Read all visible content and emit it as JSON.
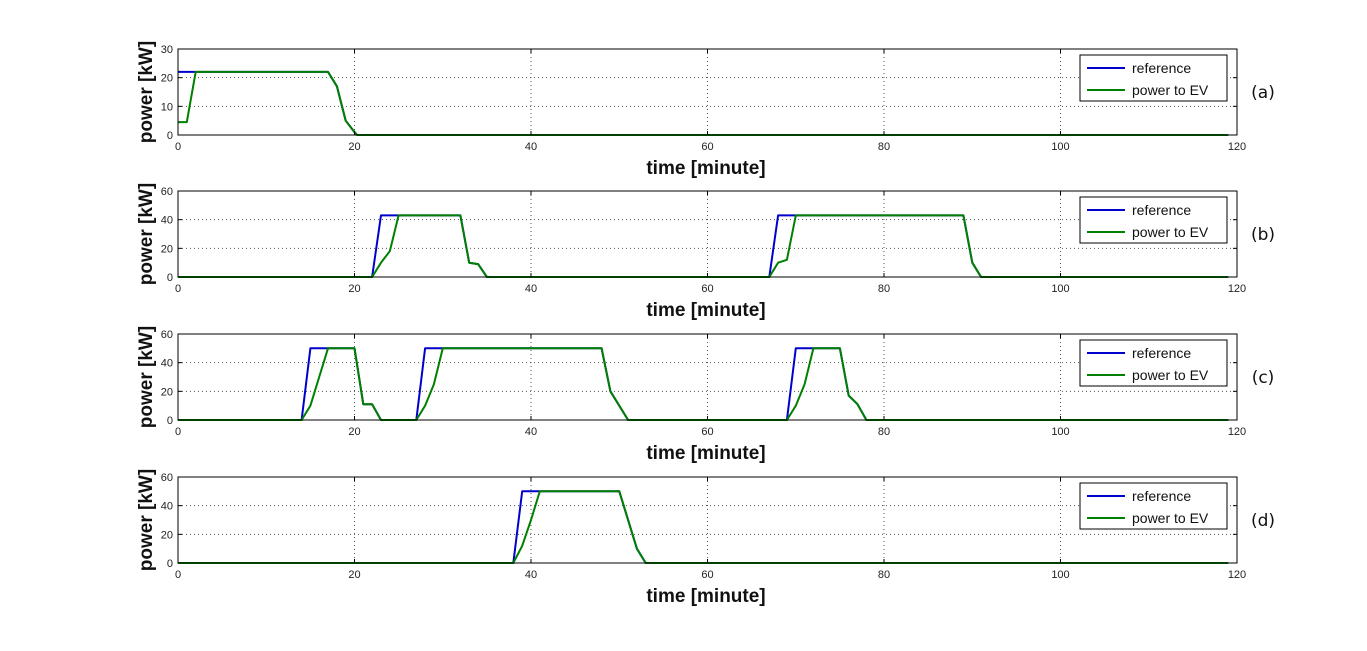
{
  "chart_data": [
    {
      "type": "line",
      "panel_label": "(a)",
      "xlabel": "time [minute]",
      "ylabel": "power [kW]",
      "xlim": [
        0,
        120
      ],
      "ylim": [
        0,
        30
      ],
      "xticks": [
        0,
        20,
        40,
        60,
        80,
        100,
        120
      ],
      "yticks": [
        0,
        10,
        20,
        30
      ],
      "grid": true,
      "legend_position": "top-right",
      "series": [
        {
          "name": "reference",
          "color": "#0000cc",
          "points": [
            [
              0,
              22
            ],
            [
              17,
              22
            ],
            [
              18,
              17
            ],
            [
              19,
              5
            ],
            [
              20,
              1
            ],
            [
              20.3,
              0
            ],
            [
              119,
              0
            ]
          ]
        },
        {
          "name": "power to EV",
          "color": "#008000",
          "points": [
            [
              0,
              4.5
            ],
            [
              1,
              4.5
            ],
            [
              2,
              22
            ],
            [
              17,
              22
            ],
            [
              18,
              17
            ],
            [
              19,
              5
            ],
            [
              20,
              1
            ],
            [
              20.3,
              0
            ],
            [
              119,
              0
            ]
          ]
        }
      ]
    },
    {
      "type": "line",
      "panel_label": "(b)",
      "xlabel": "time [minute]",
      "ylabel": "power [kW]",
      "xlim": [
        0,
        120
      ],
      "ylim": [
        0,
        60
      ],
      "xticks": [
        0,
        20,
        40,
        60,
        80,
        100,
        120
      ],
      "yticks": [
        0,
        20,
        40,
        60
      ],
      "grid": true,
      "legend_position": "top-right",
      "series": [
        {
          "name": "reference",
          "color": "#0000cc",
          "points": [
            [
              0,
              0
            ],
            [
              22,
              0
            ],
            [
              23,
              43
            ],
            [
              32,
              43
            ],
            [
              33,
              10
            ],
            [
              34,
              9
            ],
            [
              35,
              0
            ],
            [
              67,
              0
            ],
            [
              68,
              43
            ],
            [
              89,
              43
            ],
            [
              90,
              10
            ],
            [
              91,
              0
            ],
            [
              119,
              0
            ]
          ]
        },
        {
          "name": "power to EV",
          "color": "#008000",
          "points": [
            [
              0,
              0
            ],
            [
              22,
              0
            ],
            [
              23,
              10
            ],
            [
              24,
              18
            ],
            [
              25,
              43
            ],
            [
              32,
              43
            ],
            [
              33,
              10
            ],
            [
              34,
              9
            ],
            [
              35,
              0
            ],
            [
              67,
              0
            ],
            [
              68,
              10
            ],
            [
              69,
              12
            ],
            [
              70,
              43
            ],
            [
              89,
              43
            ],
            [
              90,
              10
            ],
            [
              91,
              0
            ],
            [
              119,
              0
            ]
          ]
        }
      ]
    },
    {
      "type": "line",
      "panel_label": "(c)",
      "xlabel": "time [minute]",
      "ylabel": "power [kW]",
      "xlim": [
        0,
        120
      ],
      "ylim": [
        0,
        60
      ],
      "xticks": [
        0,
        20,
        40,
        60,
        80,
        100,
        120
      ],
      "yticks": [
        0,
        20,
        40,
        60
      ],
      "grid": true,
      "legend_position": "top-right",
      "series": [
        {
          "name": "reference",
          "color": "#0000cc",
          "points": [
            [
              0,
              0
            ],
            [
              14,
              0
            ],
            [
              15,
              50
            ],
            [
              20,
              50
            ],
            [
              21,
              11
            ],
            [
              22,
              11
            ],
            [
              23,
              0
            ],
            [
              27,
              0
            ],
            [
              28,
              50
            ],
            [
              48,
              50
            ],
            [
              49,
              20
            ],
            [
              51,
              0
            ],
            [
              69,
              0
            ],
            [
              70,
              50
            ],
            [
              75,
              50
            ],
            [
              76,
              17
            ],
            [
              77,
              11
            ],
            [
              78,
              0
            ],
            [
              119,
              0
            ]
          ]
        },
        {
          "name": "power to EV",
          "color": "#008000",
          "points": [
            [
              0,
              0
            ],
            [
              14,
              0
            ],
            [
              15,
              10
            ],
            [
              16,
              30
            ],
            [
              17,
              50
            ],
            [
              20,
              50
            ],
            [
              21,
              11
            ],
            [
              22,
              11
            ],
            [
              23,
              0
            ],
            [
              27,
              0
            ],
            [
              28,
              10
            ],
            [
              29,
              25
            ],
            [
              30,
              50
            ],
            [
              48,
              50
            ],
            [
              49,
              20
            ],
            [
              51,
              0
            ],
            [
              69,
              0
            ],
            [
              70,
              10
            ],
            [
              71,
              25
            ],
            [
              72,
              50
            ],
            [
              75,
              50
            ],
            [
              76,
              17
            ],
            [
              77,
              11
            ],
            [
              78,
              0
            ],
            [
              119,
              0
            ]
          ]
        }
      ]
    },
    {
      "type": "line",
      "panel_label": "(d)",
      "xlabel": "time [minute]",
      "ylabel": "power [kW]",
      "xlim": [
        0,
        120
      ],
      "ylim": [
        0,
        60
      ],
      "xticks": [
        0,
        20,
        40,
        60,
        80,
        100,
        120
      ],
      "yticks": [
        0,
        20,
        40,
        60
      ],
      "grid": true,
      "legend_position": "top-right",
      "series": [
        {
          "name": "reference",
          "color": "#0000cc",
          "points": [
            [
              0,
              0
            ],
            [
              38,
              0
            ],
            [
              39,
              50
            ],
            [
              50,
              50
            ],
            [
              52,
              10
            ],
            [
              53,
              0
            ],
            [
              119,
              0
            ]
          ]
        },
        {
          "name": "power to EV",
          "color": "#008000",
          "points": [
            [
              0,
              0
            ],
            [
              38,
              0
            ],
            [
              39,
              12
            ],
            [
              40,
              30
            ],
            [
              41,
              50
            ],
            [
              50,
              50
            ],
            [
              52,
              10
            ],
            [
              53,
              0
            ],
            [
              119,
              0
            ]
          ]
        }
      ]
    }
  ]
}
